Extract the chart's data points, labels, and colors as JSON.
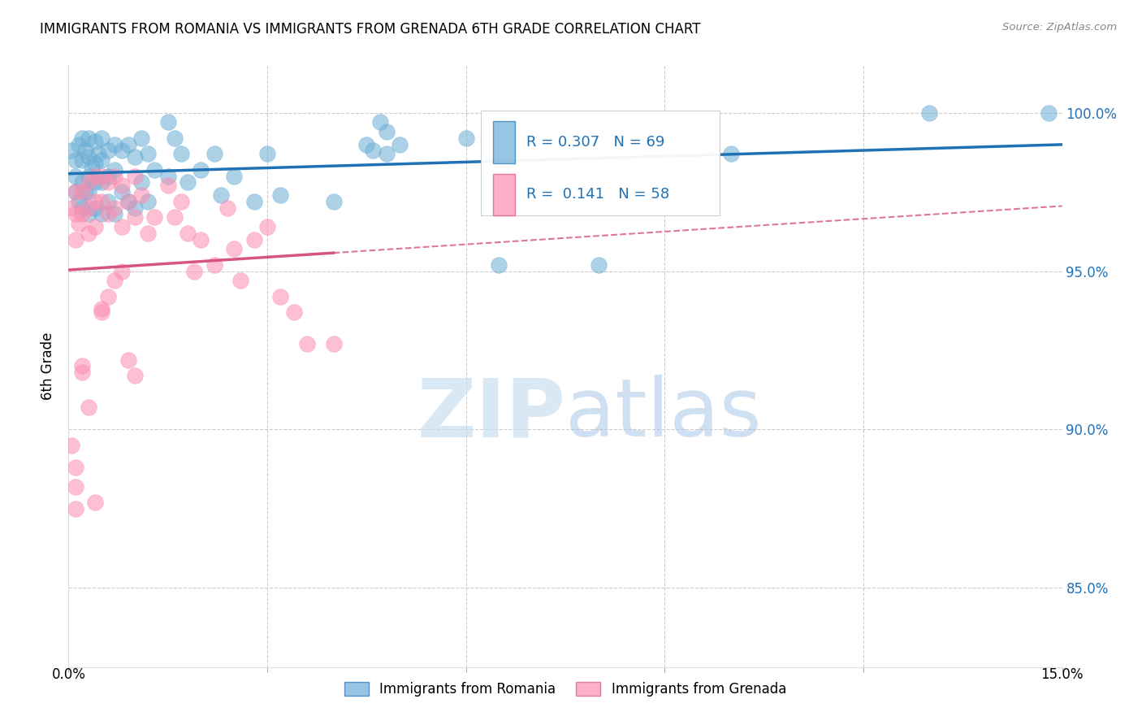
{
  "title": "IMMIGRANTS FROM ROMANIA VS IMMIGRANTS FROM GRENADA 6TH GRADE CORRELATION CHART",
  "source": "Source: ZipAtlas.com",
  "ylabel": "6th Grade",
  "ytick_labels": [
    "85.0%",
    "90.0%",
    "95.0%",
    "100.0%"
  ],
  "ytick_values": [
    0.85,
    0.9,
    0.95,
    1.0
  ],
  "xlim": [
    0.0,
    0.15
  ],
  "ylim": [
    0.825,
    1.015
  ],
  "romania_R": 0.307,
  "romania_N": 69,
  "grenada_R": 0.141,
  "grenada_N": 58,
  "romania_color": "#6baed6",
  "grenada_color": "#fc8db0",
  "romania_line_color": "#2171b5",
  "grenada_line_color": "#d6547e",
  "watermark_zip": "ZIP",
  "watermark_atlas": "atlas",
  "legend_romania": "Immigrants from Romania",
  "legend_grenada": "Immigrants from Grenada",
  "romania_x": [
    0.0005,
    0.001,
    0.001,
    0.001,
    0.0015,
    0.0015,
    0.002,
    0.002,
    0.002,
    0.002,
    0.0025,
    0.0025,
    0.003,
    0.003,
    0.003,
    0.003,
    0.003,
    0.0035,
    0.004,
    0.004,
    0.004,
    0.004,
    0.0045,
    0.005,
    0.005,
    0.005,
    0.005,
    0.006,
    0.006,
    0.006,
    0.007,
    0.007,
    0.007,
    0.008,
    0.008,
    0.009,
    0.009,
    0.01,
    0.01,
    0.011,
    0.011,
    0.012,
    0.012,
    0.013,
    0.015,
    0.015,
    0.016,
    0.017,
    0.018,
    0.02,
    0.022,
    0.023,
    0.025,
    0.028,
    0.03,
    0.032,
    0.04,
    0.045,
    0.046,
    0.047,
    0.048,
    0.048,
    0.05,
    0.06,
    0.065,
    0.08,
    0.1,
    0.13,
    0.148
  ],
  "romania_y": [
    0.988,
    0.985,
    0.98,
    0.975,
    0.99,
    0.972,
    0.992,
    0.985,
    0.978,
    0.97,
    0.988,
    0.975,
    0.992,
    0.986,
    0.98,
    0.975,
    0.968,
    0.983,
    0.991,
    0.984,
    0.978,
    0.97,
    0.987,
    0.992,
    0.985,
    0.978,
    0.968,
    0.988,
    0.98,
    0.972,
    0.99,
    0.982,
    0.968,
    0.988,
    0.975,
    0.99,
    0.972,
    0.986,
    0.97,
    0.992,
    0.978,
    0.987,
    0.972,
    0.982,
    0.997,
    0.98,
    0.992,
    0.987,
    0.978,
    0.982,
    0.987,
    0.974,
    0.98,
    0.972,
    0.987,
    0.974,
    0.972,
    0.99,
    0.988,
    0.997,
    0.994,
    0.987,
    0.99,
    0.992,
    0.952,
    0.952,
    0.987,
    1.0,
    1.0
  ],
  "grenada_x": [
    0.0005,
    0.001,
    0.001,
    0.001,
    0.001,
    0.0015,
    0.002,
    0.002,
    0.002,
    0.003,
    0.003,
    0.003,
    0.004,
    0.004,
    0.004,
    0.005,
    0.005,
    0.005,
    0.006,
    0.006,
    0.007,
    0.007,
    0.008,
    0.008,
    0.009,
    0.01,
    0.01,
    0.011,
    0.012,
    0.013,
    0.015,
    0.016,
    0.017,
    0.018,
    0.019,
    0.02,
    0.022,
    0.024,
    0.025,
    0.026,
    0.028,
    0.03,
    0.032,
    0.034,
    0.036,
    0.04,
    0.0005,
    0.001,
    0.001,
    0.002,
    0.003,
    0.004,
    0.005,
    0.006,
    0.007,
    0.008,
    0.009,
    0.01
  ],
  "grenada_y": [
    0.97,
    0.975,
    0.968,
    0.96,
    0.875,
    0.965,
    0.975,
    0.968,
    0.92,
    0.978,
    0.97,
    0.962,
    0.98,
    0.972,
    0.964,
    0.98,
    0.972,
    0.938,
    0.978,
    0.968,
    0.98,
    0.97,
    0.977,
    0.964,
    0.972,
    0.98,
    0.967,
    0.974,
    0.962,
    0.967,
    0.977,
    0.967,
    0.972,
    0.962,
    0.95,
    0.96,
    0.952,
    0.97,
    0.957,
    0.947,
    0.96,
    0.964,
    0.942,
    0.937,
    0.927,
    0.927,
    0.895,
    0.888,
    0.882,
    0.918,
    0.907,
    0.877,
    0.937,
    0.942,
    0.947,
    0.95,
    0.922,
    0.917
  ]
}
